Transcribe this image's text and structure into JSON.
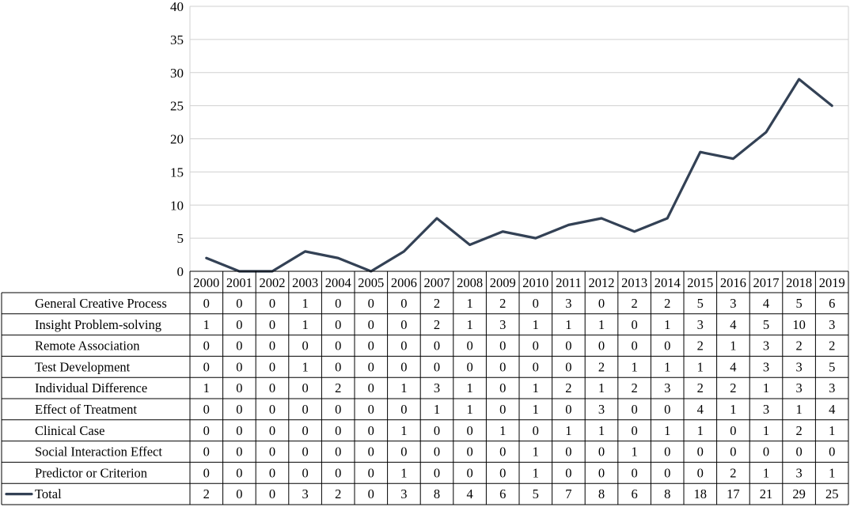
{
  "chart_data": {
    "type": "line",
    "title": "",
    "xlabel": "",
    "ylabel": "",
    "ylim": [
      0,
      40
    ],
    "yticks": [
      "0",
      "5",
      "10",
      "15",
      "20",
      "25",
      "30",
      "35",
      "40"
    ],
    "grid": true,
    "legend": "left of data table, Total row",
    "colors": {
      "line": "#334155",
      "grid": "#d0d0d0",
      "table": "#000000"
    },
    "categories": [
      "2000",
      "2001",
      "2002",
      "2003",
      "2004",
      "2005",
      "2006",
      "2007",
      "2008",
      "2009",
      "2010",
      "2011",
      "2012",
      "2013",
      "2014",
      "2015",
      "2016",
      "2017",
      "2018",
      "2019"
    ],
    "series": [
      {
        "name": "Total",
        "values": [
          2,
          0,
          0,
          3,
          2,
          0,
          3,
          8,
          4,
          6,
          5,
          7,
          8,
          6,
          8,
          18,
          17,
          21,
          29,
          25
        ]
      }
    ],
    "table_rows": [
      {
        "label": "General Creative Process",
        "values": [
          0,
          0,
          0,
          1,
          0,
          0,
          0,
          2,
          1,
          2,
          0,
          3,
          0,
          2,
          2,
          5,
          3,
          4,
          5,
          6
        ]
      },
      {
        "label": "Insight Problem-solving",
        "values": [
          1,
          0,
          0,
          1,
          0,
          0,
          0,
          2,
          1,
          3,
          1,
          1,
          1,
          0,
          1,
          3,
          4,
          5,
          10,
          3
        ]
      },
      {
        "label": "Remote Association",
        "values": [
          0,
          0,
          0,
          0,
          0,
          0,
          0,
          0,
          0,
          0,
          0,
          0,
          0,
          0,
          0,
          2,
          1,
          3,
          2,
          2
        ]
      },
      {
        "label": "Test Development",
        "values": [
          0,
          0,
          0,
          1,
          0,
          0,
          0,
          0,
          0,
          0,
          0,
          0,
          2,
          1,
          1,
          1,
          4,
          3,
          3,
          5
        ]
      },
      {
        "label": "Individual Difference",
        "values": [
          1,
          0,
          0,
          0,
          2,
          0,
          1,
          3,
          1,
          0,
          1,
          2,
          1,
          2,
          3,
          2,
          2,
          1,
          3,
          3
        ]
      },
      {
        "label": "Effect of Treatment",
        "values": [
          0,
          0,
          0,
          0,
          0,
          0,
          0,
          1,
          1,
          0,
          1,
          0,
          3,
          0,
          0,
          4,
          1,
          3,
          1,
          4
        ]
      },
      {
        "label": "Clinical Case",
        "values": [
          0,
          0,
          0,
          0,
          0,
          0,
          1,
          0,
          0,
          1,
          0,
          1,
          1,
          0,
          1,
          1,
          0,
          1,
          2,
          1
        ]
      },
      {
        "label": "Social Interaction Effect",
        "values": [
          0,
          0,
          0,
          0,
          0,
          0,
          0,
          0,
          0,
          0,
          1,
          0,
          0,
          1,
          0,
          0,
          0,
          0,
          0,
          0
        ]
      },
      {
        "label": "Predictor or Criterion",
        "values": [
          0,
          0,
          0,
          0,
          0,
          0,
          1,
          0,
          0,
          0,
          1,
          0,
          0,
          0,
          0,
          0,
          2,
          1,
          3,
          1
        ]
      },
      {
        "label": "Total",
        "values": [
          2,
          0,
          0,
          3,
          2,
          0,
          3,
          8,
          4,
          6,
          5,
          7,
          8,
          6,
          8,
          18,
          17,
          21,
          29,
          25
        ]
      }
    ]
  }
}
